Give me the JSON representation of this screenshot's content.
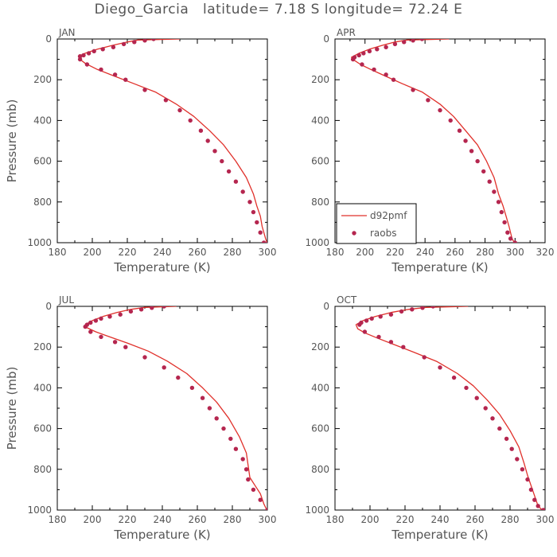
{
  "title": "Diego_Garcia   latitude= 7.18 S longitude= 72.24 E",
  "colors": {
    "model": "#e0302a",
    "obs": "#b5264f",
    "axis": "#000000",
    "text": "#555555"
  },
  "legend": {
    "model_label": "d92pmf",
    "obs_label": "raobs"
  },
  "chart_data": [
    {
      "type": "line",
      "panel": "JAN",
      "xlabel": "Temperature (K)",
      "ylabel": "Pressure (mb)",
      "xlim": [
        180,
        300
      ],
      "ylim": [
        1000,
        0
      ],
      "xticks": [
        "180",
        "200",
        "220",
        "240",
        "260",
        "280",
        "300"
      ],
      "yticks": [
        "0",
        "200",
        "400",
        "600",
        "800",
        "1000"
      ],
      "show_ylabel": true,
      "legend": false,
      "series": [
        {
          "name": "d92pmf",
          "kind": "line",
          "x": [
            250,
            226,
            220,
            212,
            203,
            196,
            192,
            193,
            196,
            203,
            212,
            224,
            236,
            248,
            258,
            267,
            275,
            282,
            288,
            292,
            294,
            296,
            297,
            299,
            300
          ],
          "y": [
            0,
            5,
            15,
            30,
            50,
            70,
            85,
            100,
            120,
            150,
            180,
            220,
            260,
            320,
            380,
            450,
            520,
            600,
            680,
            760,
            820,
            870,
            920,
            980,
            1005
          ]
        },
        {
          "name": "raobs",
          "kind": "scatter",
          "x": [
            235,
            230,
            224,
            218,
            212,
            206,
            201,
            198,
            195,
            193,
            193,
            197,
            205,
            213,
            219,
            230,
            242,
            250,
            256,
            262,
            266,
            270,
            274,
            278,
            282,
            286,
            290,
            292,
            294,
            296,
            298,
            300
          ],
          "y": [
            0,
            7,
            15,
            25,
            40,
            50,
            60,
            70,
            80,
            85,
            100,
            125,
            150,
            175,
            200,
            250,
            300,
            350,
            400,
            450,
            500,
            550,
            600,
            650,
            700,
            750,
            800,
            850,
            900,
            950,
            1000,
            1005
          ]
        }
      ]
    },
    {
      "type": "line",
      "panel": "APR",
      "xlabel": "Temperature (K)",
      "ylabel": "Pressure (mb)",
      "xlim": [
        180,
        320
      ],
      "ylim": [
        1000,
        0
      ],
      "xticks": [
        "180",
        "200",
        "220",
        "240",
        "260",
        "280",
        "300",
        "320"
      ],
      "yticks": [
        "0",
        "200",
        "400",
        "600",
        "800",
        "1000"
      ],
      "show_ylabel": false,
      "legend": true,
      "series": [
        {
          "name": "d92pmf",
          "kind": "line",
          "x": [
            256,
            228,
            220,
            212,
            203,
            196,
            191,
            193,
            197,
            204,
            213,
            225,
            238,
            250,
            259,
            267,
            275,
            281,
            286,
            289,
            292,
            294,
            296,
            298,
            300
          ],
          "y": [
            0,
            5,
            15,
            30,
            50,
            70,
            90,
            105,
            125,
            150,
            180,
            220,
            260,
            320,
            380,
            450,
            520,
            600,
            680,
            760,
            820,
            870,
            920,
            980,
            1005
          ]
        },
        {
          "name": "raobs",
          "kind": "scatter",
          "x": [
            238,
            232,
            226,
            220,
            214,
            208,
            203,
            199,
            196,
            193,
            192,
            198,
            206,
            214,
            219,
            232,
            242,
            250,
            257,
            263,
            267,
            271,
            275,
            279,
            283,
            286,
            289,
            291,
            293,
            295,
            297,
            300
          ],
          "y": [
            0,
            7,
            15,
            25,
            40,
            50,
            60,
            70,
            80,
            90,
            100,
            125,
            150,
            175,
            200,
            250,
            300,
            350,
            400,
            450,
            500,
            550,
            600,
            650,
            700,
            750,
            800,
            850,
            900,
            950,
            980,
            1000
          ]
        }
      ]
    },
    {
      "type": "line",
      "panel": "JUL",
      "xlabel": "Temperature (K)",
      "ylabel": "Pressure (mb)",
      "xlim": [
        180,
        300
      ],
      "ylim": [
        1000,
        0
      ],
      "xticks": [
        "180",
        "200",
        "220",
        "240",
        "260",
        "280",
        "300"
      ],
      "yticks": [
        "0",
        "200",
        "400",
        "600",
        "800",
        "1000"
      ],
      "show_ylabel": true,
      "legend": false,
      "series": [
        {
          "name": "d92pmf",
          "kind": "line",
          "x": [
            248,
            230,
            222,
            214,
            206,
            200,
            196,
            197,
            202,
            210,
            220,
            232,
            243,
            254,
            263,
            271,
            278,
            284,
            288,
            289,
            290,
            293,
            296,
            298,
            300
          ],
          "y": [
            0,
            5,
            15,
            30,
            50,
            70,
            90,
            105,
            125,
            150,
            180,
            220,
            270,
            330,
            400,
            470,
            550,
            640,
            720,
            780,
            840,
            880,
            920,
            970,
            1005
          ]
        },
        {
          "name": "raobs",
          "kind": "scatter",
          "x": [
            241,
            234,
            228,
            222,
            216,
            210,
            205,
            202,
            199,
            197,
            196,
            199,
            205,
            213,
            219,
            230,
            241,
            249,
            257,
            263,
            267,
            271,
            275,
            279,
            282,
            286,
            288,
            289,
            292,
            296,
            300
          ],
          "y": [
            0,
            7,
            15,
            25,
            40,
            50,
            60,
            70,
            80,
            90,
            100,
            125,
            150,
            175,
            200,
            250,
            300,
            350,
            400,
            450,
            500,
            550,
            600,
            650,
            700,
            750,
            800,
            850,
            900,
            950,
            1000
          ]
        }
      ]
    },
    {
      "type": "line",
      "panel": "OCT",
      "xlabel": "Temperature (K)",
      "ylabel": "Pressure (mb)",
      "xlim": [
        180,
        300
      ],
      "ylim": [
        1000,
        0
      ],
      "xticks": [
        "180",
        "200",
        "220",
        "240",
        "260",
        "280",
        "300"
      ],
      "yticks": [
        "0",
        "200",
        "400",
        "600",
        "800",
        "1000"
      ],
      "show_ylabel": false,
      "legend": false,
      "series": [
        {
          "name": "d92pmf",
          "kind": "line",
          "x": [
            256,
            232,
            222,
            212,
            203,
            196,
            192,
            193,
            197,
            204,
            213,
            225,
            238,
            250,
            259,
            267,
            274,
            280,
            285,
            288,
            290,
            292,
            294,
            296,
            299
          ],
          "y": [
            0,
            5,
            15,
            30,
            50,
            70,
            90,
            110,
            130,
            155,
            185,
            225,
            270,
            330,
            390,
            460,
            530,
            610,
            690,
            770,
            830,
            880,
            930,
            980,
            1005
          ]
        },
        {
          "name": "raobs",
          "kind": "scatter",
          "x": [
            236,
            230,
            224,
            218,
            212,
            206,
            201,
            198,
            195,
            194,
            197,
            205,
            212,
            219,
            231,
            240,
            248,
            255,
            261,
            266,
            270,
            274,
            278,
            281,
            284,
            287,
            290,
            292,
            294,
            296,
            299
          ],
          "y": [
            0,
            7,
            15,
            25,
            40,
            50,
            60,
            70,
            80,
            90,
            125,
            150,
            175,
            200,
            250,
            300,
            350,
            400,
            450,
            500,
            550,
            600,
            650,
            700,
            750,
            800,
            850,
            900,
            950,
            980,
            1000
          ]
        }
      ]
    }
  ]
}
